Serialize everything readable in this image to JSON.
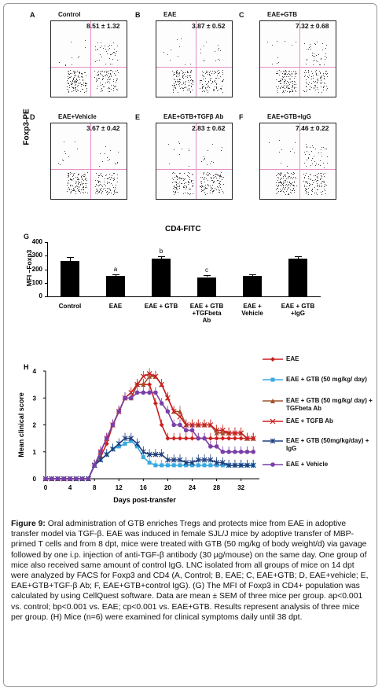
{
  "facs": {
    "y_axis_label": "Foxp3-PE",
    "x_axis_label": "CD4-FITC",
    "panels": [
      {
        "letter": "A",
        "title": "Control",
        "value": "8.51 ± 1.32"
      },
      {
        "letter": "B",
        "title": "EAE",
        "value": "3.87 ± 0.52"
      },
      {
        "letter": "C",
        "title": "EAE+GTB",
        "value": "7.32 ± 0.68"
      },
      {
        "letter": "D",
        "title": "EAE+Vehicle",
        "value": "3.67 ± 0.42"
      },
      {
        "letter": "E",
        "title": "EAE+GTB+TGFβ Ab",
        "value": "2.83 ± 0.62"
      },
      {
        "letter": "F",
        "title": "EAE+GTB+IgG",
        "value": "7.46 ± 0.22"
      }
    ]
  },
  "chart_data": [
    {
      "type": "bar",
      "panel_letter": "G",
      "ylabel": "MFI –Foxp3",
      "ylim": [
        0,
        400
      ],
      "yticks": [
        "0",
        "100",
        "200",
        "300",
        "400"
      ],
      "categories": [
        "Control",
        "EAE",
        "EAE + GTB",
        "EAE + GTB + TGFbeta Ab",
        "EAE + Vehicle",
        "EAE + GTB + IgG"
      ],
      "category_lines": [
        [
          "Control"
        ],
        [
          "EAE"
        ],
        [
          "EAE + GTB"
        ],
        [
          "EAE + GTB",
          "+TGFbeta",
          "Ab"
        ],
        [
          "EAE +",
          "Vehicle"
        ],
        [
          "EAE + GTB",
          "+IgG"
        ]
      ],
      "values": [
        262,
        153,
        278,
        142,
        150,
        277
      ],
      "errors": [
        25,
        12,
        20,
        15,
        13,
        18
      ],
      "sig_labels": [
        "",
        "a",
        "b",
        "c",
        "",
        ""
      ]
    },
    {
      "type": "line",
      "panel_letter": "H",
      "xlabel": "Days post-transfer",
      "ylabel": "Mean clinical score",
      "xlim": [
        0,
        35
      ],
      "ylim": [
        0,
        4
      ],
      "xticks": [
        "0",
        "4",
        "8",
        "12",
        "16",
        "20",
        "24",
        "28",
        "32"
      ],
      "yticks": [
        "0",
        "1",
        "2",
        "3",
        "4"
      ],
      "x": [
        0,
        1,
        2,
        3,
        4,
        5,
        6,
        7,
        8,
        9,
        10,
        11,
        12,
        13,
        14,
        15,
        16,
        17,
        18,
        19,
        20,
        21,
        22,
        23,
        24,
        25,
        26,
        27,
        28,
        29,
        30,
        31,
        32,
        33,
        34
      ],
      "series": [
        {
          "name": "EAE",
          "color": "#cc1f1f",
          "marker": "diamond",
          "values": [
            0,
            0,
            0,
            0,
            0,
            0,
            0,
            0,
            0.5,
            0.8,
            1.3,
            2.0,
            2.5,
            3.0,
            3.0,
            3.5,
            3.5,
            3.5,
            2.8,
            2.0,
            1.5,
            1.5,
            1.5,
            1.5,
            1.5,
            1.5,
            1.5,
            1.5,
            1.5,
            1.5,
            1.5,
            1.5,
            1.5,
            1.5,
            1.5
          ]
        },
        {
          "name": "EAE + GTB (50 mg/kg/ day)",
          "color": "#39a9e0",
          "marker": "square",
          "values": [
            0,
            0,
            0,
            0,
            0,
            0,
            0,
            0,
            0.5,
            0.7,
            0.9,
            1.1,
            1.2,
            1.3,
            1.4,
            1.2,
            0.8,
            0.6,
            0.5,
            0.5,
            0.5,
            0.5,
            0.5,
            0.5,
            0.5,
            0.5,
            0.5,
            0.5,
            0.5,
            0.5,
            0.5,
            0.5,
            0.5,
            0.5,
            0.5
          ]
        },
        {
          "name": "EAE + GTB (50 mg/kg/ day) + TGFbeta Ab",
          "color": "#a0522d",
          "marker": "triangle",
          "values": [
            0,
            0,
            0,
            0,
            0,
            0,
            0,
            0,
            0.5,
            1.0,
            1.5,
            2.0,
            2.5,
            3.0,
            3.0,
            3.5,
            3.5,
            3.8,
            3.8,
            3.5,
            3.0,
            2.5,
            2.5,
            2.0,
            2.0,
            2.0,
            2.0,
            2.0,
            1.7,
            1.7,
            1.7,
            1.7,
            1.7,
            1.5,
            1.5
          ]
        },
        {
          "name": "EAE + TGFB Ab",
          "color": "#cc1f1f",
          "marker": "x",
          "values": [
            0,
            0,
            0,
            0,
            0,
            0,
            0,
            0,
            0.5,
            1.0,
            1.5,
            2.0,
            2.5,
            3.0,
            3.2,
            3.5,
            3.8,
            3.9,
            3.8,
            3.5,
            3.0,
            2.5,
            2.3,
            2.0,
            2.0,
            2.0,
            2.0,
            2.0,
            1.8,
            1.8,
            1.7,
            1.7,
            1.7,
            1.5,
            1.5
          ]
        },
        {
          "name": "EAE + GTB (50mg/kg/day) + IgG",
          "color": "#1f3f7f",
          "marker": "star",
          "values": [
            0,
            0,
            0,
            0,
            0,
            0,
            0,
            0,
            0.5,
            0.7,
            0.9,
            1.1,
            1.3,
            1.5,
            1.5,
            1.3,
            1.0,
            0.9,
            0.9,
            0.9,
            0.7,
            0.7,
            0.7,
            0.6,
            0.6,
            0.7,
            0.7,
            0.7,
            0.6,
            0.6,
            0.5,
            0.5,
            0.5,
            0.5,
            0.5
          ]
        },
        {
          "name": "EAE + Vehicle",
          "color": "#7a3fa8",
          "marker": "circle",
          "values": [
            0,
            0,
            0,
            0,
            0,
            0,
            0,
            0,
            0.5,
            1.0,
            1.5,
            2.0,
            2.5,
            3.0,
            3.0,
            3.2,
            3.2,
            3.2,
            3.2,
            2.8,
            2.5,
            2.0,
            2.0,
            1.8,
            1.8,
            1.5,
            1.5,
            1.2,
            1.2,
            1.0,
            1.0,
            1.0,
            1.0,
            1.0,
            1.0
          ]
        }
      ]
    }
  ],
  "caption": {
    "figure_label": "Figure 9:",
    "text": "Oral administration of GTB enriches Tregs and protects mice from EAE in adoptive transfer model via TGF-β. EAE was induced in female SJL/J mice by adoptive transfer of MBP-primed T cells and from 8 dpt, mice were treated with GTB (50 mg/kg of body weight/d) via gavage followed by one i.p. injection of anti-TGF-β antibody (30 µg/mouse) on the same day. One group of mice also received same amount of control IgG. LNC isolated from all groups of mice on 14 dpt were analyzed by FACS for Foxp3 and CD4 (A, Control; B, EAE; C, EAE+GTB; D, EAE+vehicle; E, EAE+GTB+TGF-β Ab; F, EAE+GTB+control IgG). (G) The MFI of Foxp3 in CD4+ population was calculated by using CellQuest software. Data are mean ± SEM of three mice per group. ap<0.001 vs. control; bp<0.001 vs. EAE; cp<0.001 vs. EAE+GTB. Results represent analysis of three mice per group. (H) Mice (n=6) were examined for clinical symptoms daily until 38 dpt."
  }
}
